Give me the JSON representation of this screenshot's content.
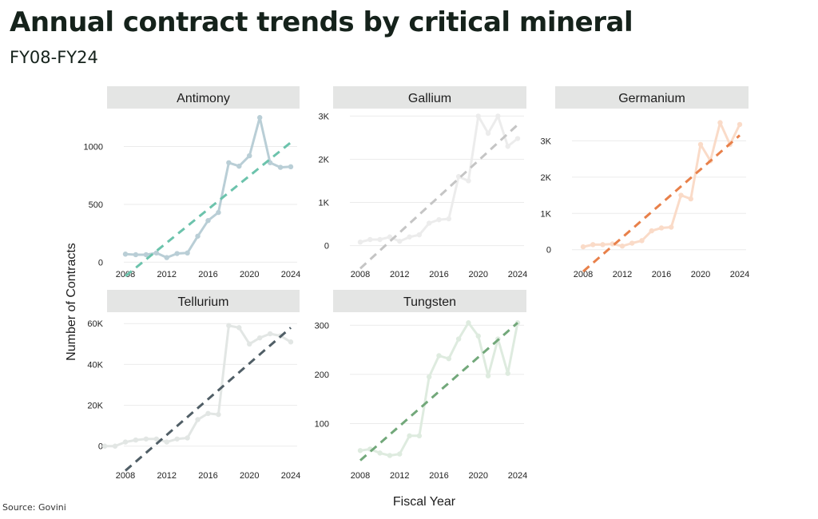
{
  "title": "Annual contract trends by critical mineral",
  "subtitle": "FY08-FY24",
  "source": "Source: Govini",
  "chart_data": {
    "type": "line",
    "xlabel": "Fiscal Year",
    "ylabel": "Number of Contracts",
    "x_ticks": [
      2008,
      2012,
      2016,
      2020,
      2024
    ],
    "panels": [
      {
        "name": "Antimony",
        "color": "#b9ced6",
        "trend_color": "#6cc3ac",
        "ylim": [
          -80,
          1300
        ],
        "y_ticks": [
          0,
          500,
          1000
        ],
        "y_tick_labels": [
          "0",
          "500",
          "1000"
        ],
        "x": [
          2008,
          2009,
          2010,
          2011,
          2012,
          2013,
          2014,
          2015,
          2016,
          2017,
          2018,
          2019,
          2020,
          2021,
          2022,
          2023,
          2024
        ],
        "values": [
          70,
          65,
          65,
          80,
          40,
          75,
          80,
          225,
          360,
          430,
          860,
          830,
          920,
          1250,
          860,
          820,
          825
        ],
        "trend": [
          -120,
          1035
        ]
      },
      {
        "name": "Gallium",
        "color": "#ececec",
        "trend_color": "#c5c5c5",
        "ylim": [
          -600,
          3100
        ],
        "y_ticks": [
          0,
          1000,
          2000,
          3000
        ],
        "y_tick_labels": [
          "0",
          "1K",
          "2K",
          "3K"
        ],
        "x": [
          2008,
          2009,
          2010,
          2011,
          2012,
          2013,
          2014,
          2015,
          2016,
          2017,
          2018,
          2019,
          2020,
          2021,
          2022,
          2023,
          2024
        ],
        "values": [
          80,
          140,
          140,
          200,
          100,
          200,
          250,
          520,
          600,
          620,
          1600,
          1500,
          3000,
          2600,
          3000,
          2300,
          2480
        ],
        "trend": [
          -530,
          2800
        ]
      },
      {
        "name": "Germanium",
        "color": "#fadbc8",
        "trend_color": "#e8804a",
        "ylim": [
          -600,
          3800
        ],
        "y_ticks": [
          0,
          1000,
          2000,
          3000
        ],
        "y_tick_labels": [
          "0",
          "1K",
          "2K",
          "3K"
        ],
        "x": [
          2008,
          2009,
          2010,
          2011,
          2012,
          2013,
          2014,
          2015,
          2016,
          2017,
          2018,
          2019,
          2020,
          2021,
          2022,
          2023,
          2024
        ],
        "values": [
          80,
          140,
          140,
          160,
          100,
          180,
          250,
          520,
          600,
          620,
          1500,
          1400,
          2900,
          2450,
          3500,
          2900,
          3450
        ],
        "trend": [
          -600,
          3150
        ]
      },
      {
        "name": "Tellurium",
        "color": "#e2e6e4",
        "trend_color": "#505e66",
        "ylim": [
          -13000,
          64000
        ],
        "y_ticks": [
          0,
          20000,
          40000,
          60000
        ],
        "y_tick_labels": [
          "0",
          "20K",
          "40K",
          "60K"
        ],
        "x": [
          2006,
          2007,
          2008,
          2009,
          2010,
          2011,
          2012,
          2013,
          2014,
          2015,
          2016,
          2017,
          2018,
          2019,
          2020,
          2021,
          2022,
          2023,
          2024
        ],
        "values": [
          0,
          0,
          2000,
          3000,
          3500,
          3500,
          2000,
          3500,
          4000,
          13000,
          16000,
          15500,
          59000,
          58000,
          50000,
          53000,
          55000,
          54000,
          51000
        ],
        "trend": [
          -12000,
          58000
        ]
      },
      {
        "name": "Tungsten",
        "color": "#deebdf",
        "trend_color": "#72a87a",
        "ylim": [
          0,
          320
        ],
        "y_ticks": [
          100,
          200,
          300
        ],
        "y_tick_labels": [
          "100",
          "200",
          "300"
        ],
        "x": [
          2008,
          2009,
          2010,
          2011,
          2012,
          2013,
          2014,
          2015,
          2016,
          2017,
          2018,
          2019,
          2020,
          2021,
          2022,
          2023,
          2024
        ],
        "values": [
          45,
          48,
          40,
          35,
          38,
          75,
          75,
          195,
          238,
          232,
          272,
          305,
          278,
          197,
          272,
          202,
          305
        ],
        "trend": [
          25,
          305
        ]
      }
    ]
  }
}
